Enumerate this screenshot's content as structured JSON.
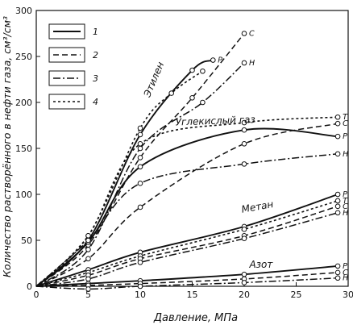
{
  "chart_data": {
    "type": "line",
    "xlabel": "Давление, МПа",
    "ylabel": "Количество растворённого в нефти газа, см³/см³",
    "xlim": [
      0,
      30
    ],
    "ylim": [
      0,
      300
    ],
    "xticks": [
      0,
      5,
      10,
      15,
      20,
      25,
      30
    ],
    "yticks": [
      0,
      50,
      100,
      150,
      200,
      250,
      300
    ],
    "grid": false,
    "legend": {
      "placement": "top-left",
      "entries": [
        {
          "label": "1",
          "dash": "solid"
        },
        {
          "label": "2",
          "dash": "dashed"
        },
        {
          "label": "3",
          "dash": "dashdot"
        },
        {
          "label": "4",
          "dash": "dotted"
        }
      ]
    },
    "groups": [
      {
        "name": "Этилен",
        "series": [
          {
            "curve": "P",
            "style": "1",
            "x": [
              0,
              5,
              10,
              15,
              17
            ],
            "y": [
              0,
              50,
              165,
              235,
              246
            ]
          },
          {
            "curve": "C",
            "style": "2",
            "x": [
              0,
              5,
              10,
              15,
              20
            ],
            "y": [
              0,
              45,
              140,
              205,
              275
            ]
          },
          {
            "curve": "H",
            "style": "3",
            "x": [
              0,
              5,
              10,
              16,
              20
            ],
            "y": [
              0,
              40,
              150,
              200,
              243
            ]
          },
          {
            "style": "4",
            "x": [
              0,
              5,
              10,
              13,
              16
            ],
            "y": [
              0,
              55,
              172,
              210,
              234
            ]
          }
        ]
      },
      {
        "name": "Углекислый газ",
        "series": [
          {
            "curve": "P",
            "style": "1",
            "x": [
              0,
              5,
              10,
              20,
              29
            ],
            "y": [
              0,
              48,
              130,
              170,
              163
            ]
          },
          {
            "curve": "C",
            "style": "2",
            "x": [
              0,
              5,
              10,
              20,
              29
            ],
            "y": [
              0,
              30,
              86,
              155,
              177
            ]
          },
          {
            "curve": "H",
            "style": "3",
            "x": [
              0,
              5,
              10,
              20,
              29
            ],
            "y": [
              0,
              50,
              112,
              133,
              144
            ]
          },
          {
            "curve": "T",
            "style": "4",
            "x": [
              0,
              5,
              10,
              20,
              29
            ],
            "y": [
              0,
              55,
              155,
              178,
              184
            ]
          }
        ]
      },
      {
        "name": "Метан",
        "series": [
          {
            "curve": "P",
            "style": "1",
            "x": [
              0,
              5,
              10,
              20,
              29
            ],
            "y": [
              0,
              18,
              37,
              65,
              100
            ]
          },
          {
            "curve": "T",
            "style": "4",
            "x": [
              0,
              5,
              10,
              20,
              29
            ],
            "y": [
              0,
              15,
              33,
              62,
              93
            ]
          },
          {
            "curve": "C",
            "style": "2",
            "x": [
              0,
              5,
              10,
              20,
              29
            ],
            "y": [
              0,
              12,
              30,
              55,
              87
            ]
          },
          {
            "curve": "H",
            "style": "3",
            "x": [
              0,
              5,
              10,
              20,
              29
            ],
            "y": [
              0,
              8,
              26,
              52,
              80
            ]
          }
        ]
      },
      {
        "name": "Азот",
        "series": [
          {
            "curve": "P",
            "style": "1",
            "x": [
              0,
              5,
              10,
              20,
              29
            ],
            "y": [
              0,
              3,
              6,
              13,
              22
            ]
          },
          {
            "curve": "C",
            "style": "2",
            "x": [
              0,
              5,
              10,
              20,
              29
            ],
            "y": [
              0,
              1,
              3,
              8,
              15
            ]
          },
          {
            "curve": "H",
            "style": "3",
            "x": [
              0,
              5,
              10,
              20,
              29
            ],
            "y": [
              0,
              -3,
              0,
              4,
              9
            ]
          }
        ]
      }
    ]
  }
}
